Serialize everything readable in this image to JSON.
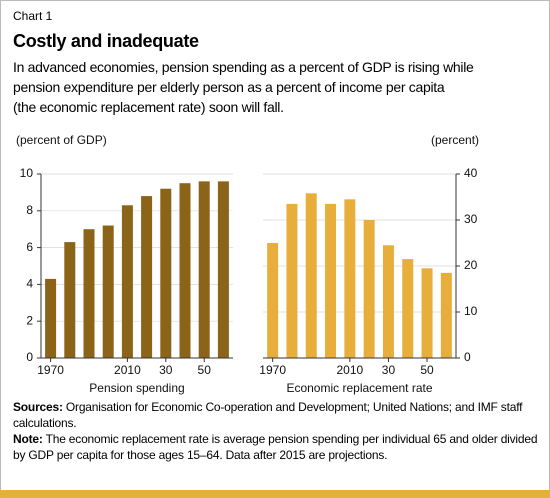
{
  "header": {
    "label": "Chart 1",
    "title": "Costly and inadequate",
    "subtitle_lines": [
      "In advanced economies, pension spending as a percent of GDP is rising while",
      "pension expenditure per elderly person as a percent of income per capita",
      "(the economic replacement rate) soon will fall."
    ]
  },
  "chart_data": [
    {
      "type": "bar",
      "y_label": "(percent of GDP)",
      "x_label": "Pension spending",
      "yaxis_side": "left",
      "color": "#8b6419",
      "categories": [
        "1970",
        null,
        null,
        null,
        "2010",
        null,
        "30",
        null,
        "50",
        null
      ],
      "values": [
        4.3,
        6.3,
        7.0,
        7.2,
        8.3,
        8.8,
        9.2,
        9.5,
        9.6,
        9.6
      ],
      "ylim": [
        0,
        10
      ],
      "yticks": [
        0,
        2,
        4,
        6,
        8,
        10
      ],
      "grid": true
    },
    {
      "type": "bar",
      "y_label": "(percent)",
      "x_label": "Economic replacement rate",
      "yaxis_side": "right",
      "color": "#e8ae3c",
      "categories": [
        "1970",
        null,
        null,
        null,
        "2010",
        null,
        "30",
        null,
        "50",
        null
      ],
      "values": [
        25,
        33.5,
        35.8,
        33.5,
        34.5,
        30,
        24.5,
        21.5,
        19.5,
        18.5
      ],
      "ylim": [
        0,
        40
      ],
      "yticks": [
        0,
        10,
        20,
        30,
        40
      ],
      "grid": true
    }
  ],
  "footer": {
    "sources_label": "Sources:",
    "sources": "Organisation for Economic Co-operation and Development; United Nations; and IMF staff calculations.",
    "note_label": "Note:",
    "note": "The economic replacement rate is average pension spending per individual 65 and older divided by GDP per capita for those ages 15–64. Data after 2015 are projections."
  }
}
